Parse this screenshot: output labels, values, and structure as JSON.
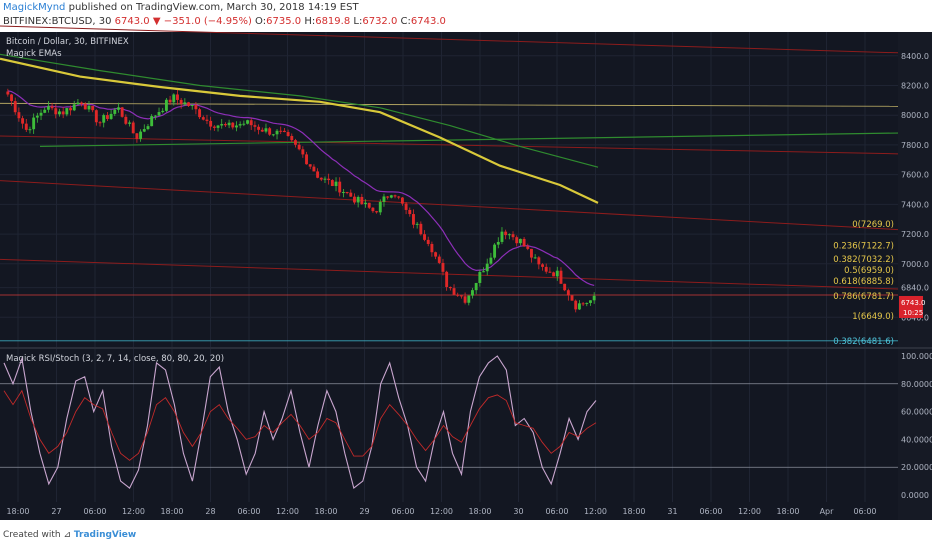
{
  "header": {
    "user": "MagickMynd",
    "published": "published on TradingView.com, March 30, 2018 14:19 EST",
    "symbol": "BITFINEX:BTCUSD, 30",
    "last": "6743.0",
    "arrow": "▼",
    "change": "−351.0 (−4.95%)",
    "o_label": "O:",
    "o_val": "6735.0",
    "h_label": "H:",
    "h_val": "6819.8",
    "l_label": "L:",
    "l_val": "6732.0",
    "c_label": "C:",
    "c_val": "6743.0"
  },
  "footer": {
    "created": "Created with",
    "brand": "TradingView"
  },
  "colors": {
    "bg": "#131722",
    "grid": "#1f2433",
    "up": "#3ebc3a",
    "down": "#e02828",
    "ema_yellow": "#d9c93a",
    "ema_purple": "#8d2fb8",
    "ema_green": "#2f8b2f",
    "fib": "#e6c84a",
    "trend_red": "#8c1c1c",
    "rsi": "#c9a6cf",
    "stoch": "#c12a2a"
  },
  "chart_data": [
    {
      "type": "candlestick",
      "title": "Bitcoin / Dollar, 30, BITFINEX",
      "indicator_label": "Magick EMAs",
      "ylim": [
        6440,
        8560
      ],
      "y_ticks": [
        6640,
        6840,
        7000,
        7200,
        7400,
        7600,
        7800,
        8000,
        8200,
        8400
      ],
      "y_tick_labels": [
        "6640.0",
        "6840.0",
        "7000.0",
        "7200.0",
        "7400.0",
        "7600.0",
        "7800.0",
        "8000.0",
        "8200.0",
        "8400.0"
      ],
      "x_ticks": [
        "18:00",
        "27",
        "06:00",
        "12:00",
        "18:00",
        "28",
        "06:00",
        "12:00",
        "18:00",
        "29",
        "06:00",
        "12:00",
        "18:00",
        "30",
        "06:00",
        "12:00",
        "18:00",
        "31",
        "06:00",
        "12:00",
        "18:00",
        "Apr",
        "06:00"
      ],
      "close_path": [
        8140,
        7900,
        8050,
        8020,
        8100,
        7950,
        8050,
        7850,
        8000,
        8120,
        8060,
        7950,
        7920,
        7950,
        7900,
        7870,
        7750,
        7580,
        7520,
        7430,
        7350,
        7500,
        7300,
        7150,
        6850,
        6760,
        6980,
        7230,
        7150,
        6980,
        6930,
        6720,
        6760
      ],
      "fib_levels": [
        {
          "ratio": "0",
          "price": "7269.0",
          "value": 7269.0
        },
        {
          "ratio": "0.236",
          "price": "7122.7",
          "value": 7122.7
        },
        {
          "ratio": "0.382",
          "price": "7032.2",
          "value": 7032.2
        },
        {
          "ratio": "0.5",
          "price": "6959.0",
          "value": 6959.0
        },
        {
          "ratio": "0.618",
          "price": "6885.8",
          "value": 6885.8
        },
        {
          "ratio": "0.786",
          "price": "6781.7",
          "value": 6781.7
        },
        {
          "ratio": "1",
          "price": "6649.0",
          "value": 6649.0
        }
      ],
      "ext_level": {
        "ratio": "0.382",
        "price": "6481.6",
        "value": 6481.6
      },
      "price_tag": {
        "value": "6743.0",
        "countdown": "10:25"
      },
      "horizontal_levels": [
        8060,
        6790
      ]
    },
    {
      "type": "line",
      "title": "Magick RSI/Stoch (3, 2, 7, 14, close, 80, 80, 20, 20)",
      "ylim": [
        -5,
        105
      ],
      "y_ticks": [
        0,
        20,
        40,
        60,
        80,
        100
      ],
      "y_tick_labels": [
        "0.0000",
        "20.0000",
        "40.0000",
        "60.0000",
        "80.0000",
        "100.0000"
      ],
      "bands": [
        80,
        20
      ],
      "series": [
        {
          "values": [
            95,
            80,
            98,
            60,
            30,
            8,
            20,
            55,
            82,
            85,
            60,
            75,
            35,
            10,
            5,
            18,
            50,
            95,
            90,
            65,
            30,
            10,
            45,
            85,
            92,
            60,
            40,
            15,
            30,
            60,
            40,
            55,
            75,
            45,
            20,
            50,
            75,
            60,
            30,
            5,
            10,
            35,
            80,
            95,
            70,
            50,
            20,
            10,
            40,
            60,
            30,
            15,
            60,
            85,
            95,
            100,
            90,
            50,
            55,
            45,
            20,
            8,
            30,
            55,
            40,
            60,
            68
          ]
        },
        {
          "values": [
            75,
            65,
            75,
            55,
            40,
            30,
            35,
            45,
            60,
            70,
            65,
            62,
            45,
            30,
            25,
            30,
            45,
            65,
            70,
            60,
            45,
            35,
            45,
            60,
            65,
            55,
            48,
            40,
            42,
            50,
            45,
            52,
            58,
            50,
            40,
            45,
            55,
            52,
            40,
            28,
            28,
            35,
            55,
            65,
            58,
            50,
            40,
            32,
            40,
            50,
            42,
            38,
            50,
            62,
            70,
            72,
            68,
            52,
            50,
            48,
            38,
            30,
            35,
            45,
            42,
            48,
            52
          ]
        }
      ]
    }
  ]
}
